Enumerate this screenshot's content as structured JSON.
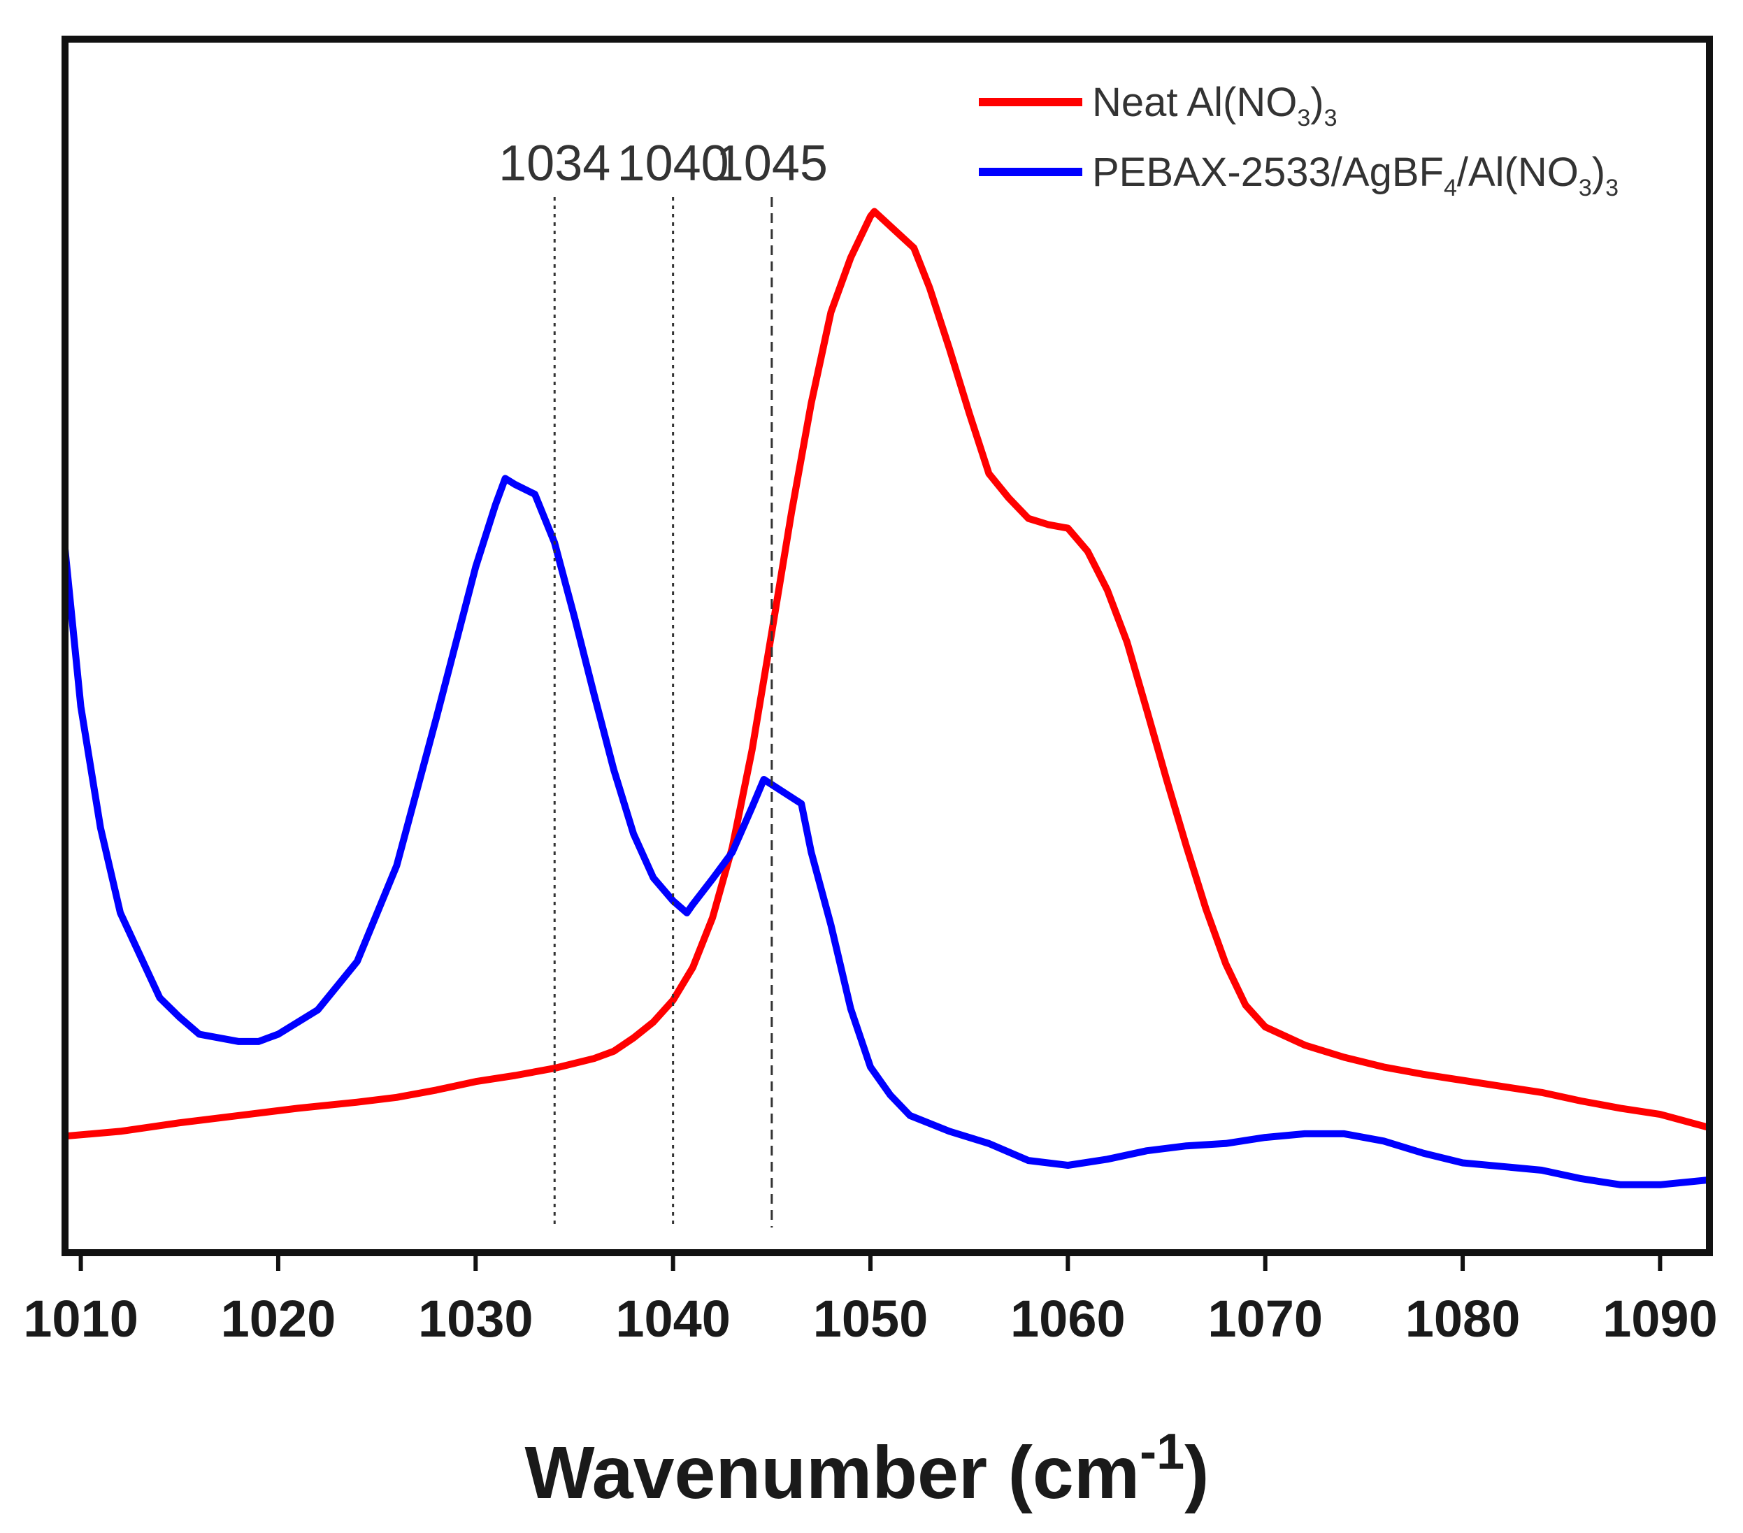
{
  "chart_data": {
    "type": "line",
    "title": "",
    "xlabel": {
      "main": "Wavenumber (cm",
      "superscript": "-1",
      "close": ")"
    },
    "ylabel": "",
    "xlim": [
      1009.2,
      1092.5
    ],
    "ylim": [
      0,
      1
    ],
    "x_ticks": [
      {
        "value": 1010,
        "label": "1010"
      },
      {
        "value": 1020,
        "label": "1020"
      },
      {
        "value": 1030,
        "label": "1030"
      },
      {
        "value": 1040,
        "label": "1040"
      },
      {
        "value": 1050,
        "label": "1050"
      },
      {
        "value": 1060,
        "label": "1060"
      },
      {
        "value": 1070,
        "label": "1070"
      },
      {
        "value": 1080,
        "label": "1080"
      },
      {
        "value": 1090,
        "label": "1090"
      }
    ],
    "y_ticks_visible": false,
    "grid": false,
    "legend_position": "top-right",
    "annotations": [
      {
        "x": 1034,
        "label": "1034",
        "style": "dotted"
      },
      {
        "x": 1040,
        "label": "1040",
        "style": "dotted"
      },
      {
        "x": 1045,
        "label": "1045",
        "style": "dashed"
      }
    ],
    "series": [
      {
        "name": "Neat Al(NO3)3",
        "legend_parts": [
          {
            "text": "Neat Al(NO"
          },
          {
            "text": "3",
            "sub": true
          },
          {
            "text": ")"
          },
          {
            "text": "3",
            "sub": true
          }
        ],
        "color": "#ff0000",
        "points": [
          [
            1009.2,
            0.096
          ],
          [
            1012,
            0.1
          ],
          [
            1015,
            0.107
          ],
          [
            1018,
            0.113
          ],
          [
            1021,
            0.119
          ],
          [
            1024,
            0.124
          ],
          [
            1026,
            0.128
          ],
          [
            1028,
            0.134
          ],
          [
            1030,
            0.141
          ],
          [
            1032,
            0.146
          ],
          [
            1034,
            0.152
          ],
          [
            1036,
            0.16
          ],
          [
            1037,
            0.166
          ],
          [
            1038,
            0.177
          ],
          [
            1039,
            0.19
          ],
          [
            1040,
            0.208
          ],
          [
            1041,
            0.235
          ],
          [
            1042,
            0.276
          ],
          [
            1043,
            0.334
          ],
          [
            1044,
            0.414
          ],
          [
            1045,
            0.511
          ],
          [
            1046,
            0.61
          ],
          [
            1047,
            0.7
          ],
          [
            1048,
            0.775
          ],
          [
            1049,
            0.82
          ],
          [
            1050,
            0.854
          ],
          [
            1050.2,
            0.858
          ],
          [
            1052.2,
            0.828
          ],
          [
            1053,
            0.795
          ],
          [
            1054,
            0.745
          ],
          [
            1055,
            0.692
          ],
          [
            1056,
            0.642
          ],
          [
            1057,
            0.622
          ],
          [
            1058,
            0.605
          ],
          [
            1059,
            0.6
          ],
          [
            1060,
            0.597
          ],
          [
            1061,
            0.578
          ],
          [
            1062,
            0.546
          ],
          [
            1063,
            0.503
          ],
          [
            1064,
            0.447
          ],
          [
            1065,
            0.39
          ],
          [
            1066,
            0.335
          ],
          [
            1067,
            0.283
          ],
          [
            1068,
            0.238
          ],
          [
            1069,
            0.204
          ],
          [
            1070,
            0.186
          ],
          [
            1072,
            0.171
          ],
          [
            1074,
            0.161
          ],
          [
            1076,
            0.153
          ],
          [
            1078,
            0.147
          ],
          [
            1080,
            0.142
          ],
          [
            1082,
            0.137
          ],
          [
            1084,
            0.132
          ],
          [
            1086,
            0.125
          ],
          [
            1088,
            0.119
          ],
          [
            1090,
            0.114
          ],
          [
            1092.5,
            0.103
          ]
        ]
      },
      {
        "name": "PEBAX-2533/AgBF4/Al(NO3)3",
        "legend_parts": [
          {
            "text": "PEBAX-2533/AgBF"
          },
          {
            "text": "4",
            "sub": true
          },
          {
            "text": "/Al(NO"
          },
          {
            "text": "3",
            "sub": true
          },
          {
            "text": ")"
          },
          {
            "text": "3",
            "sub": true
          }
        ],
        "color": "#0000ff",
        "points": [
          [
            1009.2,
            0.58
          ],
          [
            1010,
            0.45
          ],
          [
            1011,
            0.35
          ],
          [
            1012,
            0.28
          ],
          [
            1014,
            0.21
          ],
          [
            1015,
            0.194
          ],
          [
            1016,
            0.18
          ],
          [
            1018,
            0.174
          ],
          [
            1019,
            0.174
          ],
          [
            1020,
            0.18
          ],
          [
            1022,
            0.2
          ],
          [
            1024,
            0.24
          ],
          [
            1026,
            0.319
          ],
          [
            1028,
            0.44
          ],
          [
            1030,
            0.565
          ],
          [
            1031,
            0.616
          ],
          [
            1031.5,
            0.638
          ],
          [
            1032,
            0.633
          ],
          [
            1033,
            0.625
          ],
          [
            1034,
            0.585
          ],
          [
            1035,
            0.524
          ],
          [
            1036,
            0.46
          ],
          [
            1037,
            0.398
          ],
          [
            1038,
            0.345
          ],
          [
            1039,
            0.309
          ],
          [
            1040,
            0.29
          ],
          [
            1040.7,
            0.28
          ],
          [
            1041,
            0.287
          ],
          [
            1042,
            0.308
          ],
          [
            1043,
            0.33
          ],
          [
            1044,
            0.367
          ],
          [
            1044.6,
            0.39
          ],
          [
            1046.5,
            0.37
          ],
          [
            1047,
            0.33
          ],
          [
            1048,
            0.27
          ],
          [
            1049,
            0.201
          ],
          [
            1050,
            0.153
          ],
          [
            1051,
            0.13
          ],
          [
            1052,
            0.113
          ],
          [
            1054,
            0.1
          ],
          [
            1056,
            0.09
          ],
          [
            1058,
            0.076
          ],
          [
            1060,
            0.072
          ],
          [
            1062,
            0.077
          ],
          [
            1064,
            0.084
          ],
          [
            1066,
            0.088
          ],
          [
            1068,
            0.09
          ],
          [
            1070,
            0.095
          ],
          [
            1072,
            0.098
          ],
          [
            1074,
            0.098
          ],
          [
            1076,
            0.092
          ],
          [
            1078,
            0.082
          ],
          [
            1080,
            0.074
          ],
          [
            1082,
            0.071
          ],
          [
            1084,
            0.068
          ],
          [
            1086,
            0.061
          ],
          [
            1088,
            0.056
          ],
          [
            1090,
            0.056
          ],
          [
            1092.5,
            0.06
          ]
        ]
      }
    ]
  }
}
